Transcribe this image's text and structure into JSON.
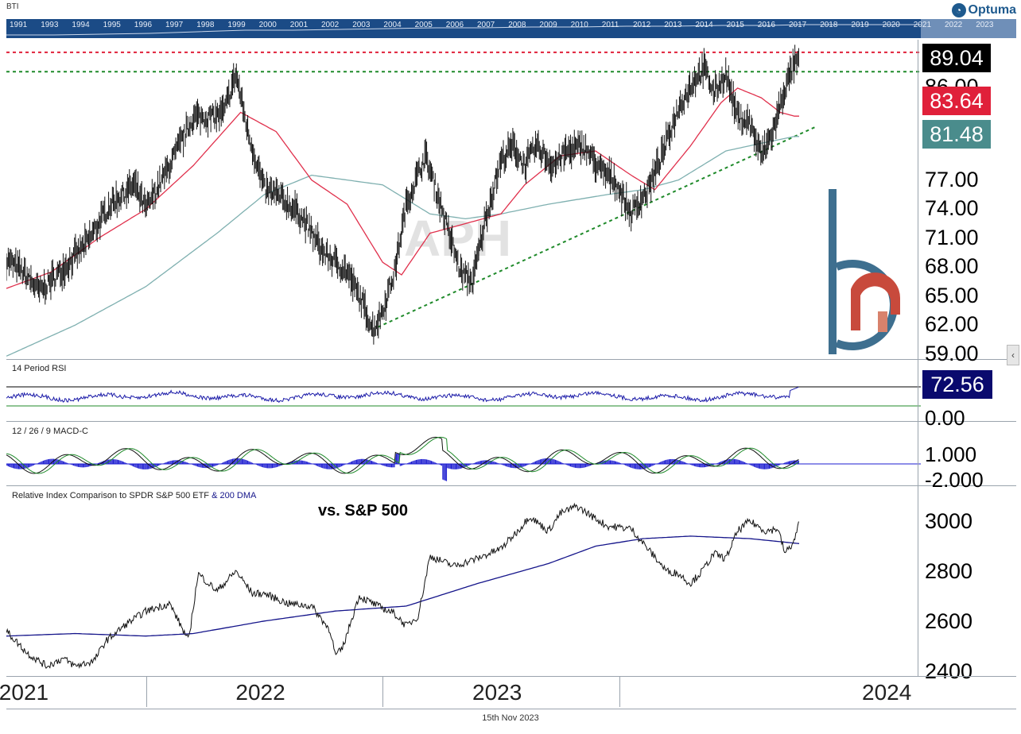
{
  "header": {
    "label": "BTI",
    "brand": "Optuma",
    "brand_icon": "optuma-logo-icon"
  },
  "overview_years": [
    "1991",
    "1993",
    "1994",
    "1995",
    "1996",
    "1997",
    "1998",
    "1999",
    "2000",
    "2001",
    "2002",
    "2003",
    "2004",
    "2005",
    "2006",
    "2007",
    "2008",
    "2009",
    "2010",
    "2011",
    "2012",
    "2013",
    "2014",
    "2015",
    "2016",
    "2017",
    "2018",
    "2019",
    "2020",
    "2021",
    "2022",
    "2023"
  ],
  "watermark": "APH",
  "footer": {
    "date": "15th Nov 2023"
  },
  "colors": {
    "price": "#111111",
    "ma_short": "#e0304c",
    "ma_long": "#7fb0b0",
    "rsi": "#1a1aa8",
    "macd_hist": "#1d1dd0",
    "macd_signal": "#1f8a2a",
    "relative": "#111111",
    "relative_ma": "#14148a",
    "support": "#1f8a2a",
    "resistance": "#e0203a",
    "badge_last": "#000000",
    "badge_ma_short": "#e0203a",
    "badge_ma_long": "#4a8c8c",
    "badge_rsi": "#0a0a6e"
  },
  "x_axis": {
    "years": [
      "2021",
      "2022",
      "2023",
      "2024"
    ]
  },
  "chart_data": [
    {
      "type": "line",
      "panel": "price",
      "y_ticks": [
        "86.00",
        "77.00",
        "74.00",
        "71.00",
        "68.00",
        "65.00",
        "62.00",
        "59.00"
      ],
      "last_values": {
        "price": "89.04",
        "ma_short": "83.64",
        "ma_long": "81.48"
      },
      "price_anchors": [
        [
          2020.91,
          68.8
        ],
        [
          2020.98,
          67.5
        ],
        [
          2021.05,
          65.5
        ],
        [
          2021.15,
          67.8
        ],
        [
          2021.25,
          70.5
        ],
        [
          2021.35,
          74.5
        ],
        [
          2021.45,
          76.5
        ],
        [
          2021.5,
          74.0
        ],
        [
          2021.6,
          78.5
        ],
        [
          2021.7,
          83.5
        ],
        [
          2021.78,
          83.5
        ],
        [
          2021.83,
          84.0
        ],
        [
          2021.88,
          88.0
        ],
        [
          2021.93,
          82.0
        ],
        [
          2022.0,
          76.0
        ],
        [
          2022.05,
          75.5
        ],
        [
          2022.15,
          73.5
        ],
        [
          2022.25,
          69.5
        ],
        [
          2022.35,
          67.5
        ],
        [
          2022.42,
          64.0
        ],
        [
          2022.46,
          61.5
        ],
        [
          2022.5,
          63.5
        ],
        [
          2022.55,
          67.5
        ],
        [
          2022.6,
          74.5
        ],
        [
          2022.68,
          79.5
        ],
        [
          2022.72,
          76.5
        ],
        [
          2022.78,
          71.5
        ],
        [
          2022.83,
          67.5
        ],
        [
          2022.88,
          66.5
        ],
        [
          2022.93,
          72.5
        ],
        [
          2023.0,
          79.0
        ],
        [
          2023.05,
          80.5
        ],
        [
          2023.1,
          78.5
        ],
        [
          2023.15,
          80.5
        ],
        [
          2023.22,
          78.5
        ],
        [
          2023.28,
          80.0
        ],
        [
          2023.35,
          80.5
        ],
        [
          2023.42,
          78.0
        ],
        [
          2023.48,
          77.0
        ],
        [
          2023.55,
          73.5
        ],
        [
          2023.62,
          76.0
        ],
        [
          2023.68,
          79.5
        ],
        [
          2023.75,
          84.5
        ],
        [
          2023.82,
          87.5
        ],
        [
          2023.86,
          88.5
        ],
        [
          2023.9,
          86.0
        ],
        [
          2023.95,
          88.0
        ],
        [
          2024.0,
          83.5
        ],
        [
          2024.05,
          83.0
        ],
        [
          2024.1,
          79.5
        ],
        [
          2024.15,
          82.0
        ],
        [
          2024.2,
          86.5
        ],
        [
          2024.24,
          89.0
        ]
      ],
      "ma_short_anchors": [
        [
          2020.91,
          65.8
        ],
        [
          2021.1,
          67.5
        ],
        [
          2021.3,
          71.0
        ],
        [
          2021.5,
          74.0
        ],
        [
          2021.7,
          78.5
        ],
        [
          2021.9,
          84.0
        ],
        [
          2022.05,
          82.0
        ],
        [
          2022.2,
          77.0
        ],
        [
          2022.35,
          74.5
        ],
        [
          2022.5,
          68.5
        ],
        [
          2022.58,
          67.2
        ],
        [
          2022.7,
          71.5
        ],
        [
          2022.85,
          72.5
        ],
        [
          2023.0,
          73.5
        ],
        [
          2023.1,
          76.5
        ],
        [
          2023.25,
          79.5
        ],
        [
          2023.4,
          80.0
        ],
        [
          2023.55,
          77.5
        ],
        [
          2023.65,
          76.0
        ],
        [
          2023.8,
          80.5
        ],
        [
          2023.93,
          85.0
        ],
        [
          2024.0,
          86.5
        ],
        [
          2024.1,
          85.5
        ],
        [
          2024.18,
          84.0
        ],
        [
          2024.24,
          83.6
        ]
      ],
      "ma_long_anchors": [
        [
          2020.91,
          58.8
        ],
        [
          2021.2,
          62.0
        ],
        [
          2021.5,
          66.0
        ],
        [
          2021.8,
          71.5
        ],
        [
          2022.0,
          75.5
        ],
        [
          2022.2,
          77.5
        ],
        [
          2022.5,
          76.5
        ],
        [
          2022.7,
          73.5
        ],
        [
          2022.85,
          73.0
        ],
        [
          2023.0,
          73.5
        ],
        [
          2023.2,
          74.5
        ],
        [
          2023.45,
          75.5
        ],
        [
          2023.6,
          76.0
        ],
        [
          2023.75,
          77.0
        ],
        [
          2023.95,
          80.0
        ],
        [
          2024.1,
          80.8
        ],
        [
          2024.24,
          81.5
        ]
      ],
      "support_line": [
        [
          2022.48,
          61.8
        ],
        [
          2024.33,
          82.5
        ]
      ],
      "resistance_line": 90.2,
      "prior_high_line": 88.2,
      "ylim": [
        58.5,
        91.5
      ]
    },
    {
      "type": "line",
      "panel": "rsi",
      "label": "14 Period RSI",
      "y_ticks": [
        "0.00"
      ],
      "last_value": "72.56",
      "levels": [
        70,
        30
      ],
      "ylim": [
        0,
        100
      ]
    },
    {
      "type": "bar",
      "panel": "macd",
      "label": "12 / 26 / 9 MACD-C",
      "y_ticks": [
        "1.000",
        "-2.000"
      ],
      "ylim": [
        -2.6,
        2.6
      ]
    },
    {
      "type": "line",
      "panel": "relative",
      "label": "Relative Index Comparison to SPDR S&P 500 ETF",
      "label_suffix": "& 200 DMA",
      "annotation": "vs. S&P 500",
      "y_ticks": [
        "3000",
        "2800",
        "2600",
        "2400"
      ],
      "ratio_anchors": [
        [
          2020.91,
          2560
        ],
        [
          2021.0,
          2470
        ],
        [
          2021.08,
          2420
        ],
        [
          2021.15,
          2450
        ],
        [
          2021.2,
          2420
        ],
        [
          2021.28,
          2440
        ],
        [
          2021.33,
          2520
        ],
        [
          2021.42,
          2590
        ],
        [
          2021.5,
          2640
        ],
        [
          2021.6,
          2670
        ],
        [
          2021.68,
          2520
        ],
        [
          2021.72,
          2790
        ],
        [
          2021.8,
          2720
        ],
        [
          2021.88,
          2800
        ],
        [
          2021.95,
          2710
        ],
        [
          2022.0,
          2710
        ],
        [
          2022.1,
          2670
        ],
        [
          2022.2,
          2660
        ],
        [
          2022.28,
          2560
        ],
        [
          2022.3,
          2460
        ],
        [
          2022.33,
          2490
        ],
        [
          2022.4,
          2700
        ],
        [
          2022.48,
          2660
        ],
        [
          2022.55,
          2630
        ],
        [
          2022.6,
          2580
        ],
        [
          2022.65,
          2620
        ],
        [
          2022.7,
          2860
        ],
        [
          2022.8,
          2820
        ],
        [
          2022.9,
          2850
        ],
        [
          2023.0,
          2890
        ],
        [
          2023.08,
          2970
        ],
        [
          2023.12,
          3020
        ],
        [
          2023.2,
          2960
        ],
        [
          2023.25,
          3030
        ],
        [
          2023.32,
          3060
        ],
        [
          2023.4,
          3010
        ],
        [
          2023.45,
          2980
        ],
        [
          2023.55,
          2970
        ],
        [
          2023.62,
          2890
        ],
        [
          2023.7,
          2800
        ],
        [
          2023.75,
          2790
        ],
        [
          2023.8,
          2750
        ],
        [
          2023.85,
          2800
        ],
        [
          2023.9,
          2870
        ],
        [
          2023.95,
          2850
        ],
        [
          2024.0,
          2960
        ],
        [
          2024.05,
          3000
        ],
        [
          2024.12,
          2960
        ],
        [
          2024.17,
          2970
        ],
        [
          2024.2,
          2870
        ],
        [
          2024.24,
          2920
        ],
        [
          2024.26,
          3000
        ]
      ],
      "ratio_ma_anchors": [
        [
          2020.91,
          2540
        ],
        [
          2021.2,
          2550
        ],
        [
          2021.5,
          2540
        ],
        [
          2021.7,
          2550
        ],
        [
          2022.0,
          2600
        ],
        [
          2022.3,
          2640
        ],
        [
          2022.6,
          2660
        ],
        [
          2022.9,
          2750
        ],
        [
          2023.2,
          2830
        ],
        [
          2023.4,
          2900
        ],
        [
          2023.6,
          2930
        ],
        [
          2023.8,
          2940
        ],
        [
          2024.05,
          2930
        ],
        [
          2024.26,
          2910
        ]
      ],
      "ylim": [
        2380,
        3140
      ]
    }
  ]
}
